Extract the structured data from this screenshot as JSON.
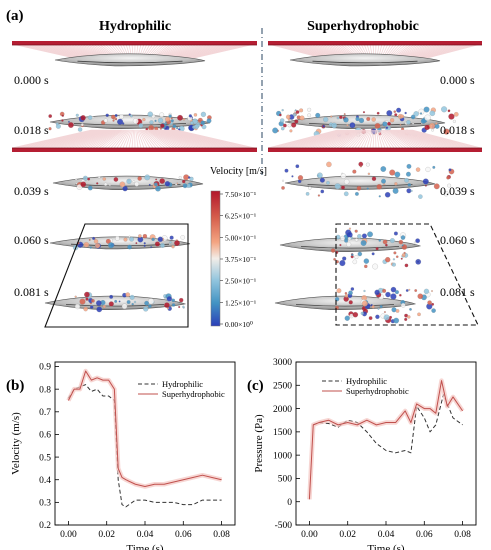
{
  "figure": {
    "panel_a_label": "(a)",
    "panel_b_label": "(b)",
    "panel_c_label": "(c)",
    "col_left_title": "Hydrophilic",
    "col_right_title": "Superhydrophobic",
    "time_labels": [
      "0.000 s",
      "0.018 s",
      "0.039 s",
      "0.060 s",
      "0.081 s"
    ],
    "colorbar": {
      "title": "Velocity [m/s]",
      "ticks": [
        "7.50×10⁻¹",
        "6.25×10⁻¹",
        "5.00×10⁻¹",
        "3.75×10⁻¹",
        "2.50×10⁻¹",
        "1.25×10⁻¹",
        "0.00×10⁰"
      ],
      "colors": [
        "#b2182b",
        "#d6604d",
        "#f4a582",
        "#f7f7f7",
        "#92c5de",
        "#4393c3",
        "#2c3fb8"
      ]
    },
    "colors": {
      "hydrophilic": "#333333",
      "superhydrophobic": "#c0504d",
      "shade": "#f4c4c0"
    }
  },
  "chart_data": [
    {
      "type": "line",
      "panel": "b",
      "xlabel": "Time (s)",
      "ylabel": "Velocity (m/s)",
      "xlim": [
        -0.007,
        0.087
      ],
      "ylim": [
        0.2,
        0.92
      ],
      "xticks": [
        0.0,
        0.02,
        0.04,
        0.06,
        0.08
      ],
      "yticks": [
        0.2,
        0.3,
        0.4,
        0.5,
        0.6,
        0.7,
        0.8,
        0.9
      ],
      "xtick_labels": [
        "0.00",
        "0.02",
        "0.04",
        "0.06",
        "0.08"
      ],
      "ytick_labels": [
        "0.2",
        "0.3",
        "0.4",
        "0.5",
        "0.6",
        "0.7",
        "0.8",
        "0.9"
      ],
      "legend_position": "top-right",
      "series": [
        {
          "name": "Hydrophilic",
          "style": "dashed",
          "x": [
            0.0,
            0.003,
            0.006,
            0.009,
            0.012,
            0.015,
            0.018,
            0.021,
            0.024,
            0.026,
            0.028,
            0.03,
            0.035,
            0.04,
            0.045,
            0.05,
            0.055,
            0.06,
            0.065,
            0.07,
            0.075,
            0.08
          ],
          "y": [
            0.76,
            0.8,
            0.81,
            0.82,
            0.79,
            0.8,
            0.77,
            0.77,
            0.75,
            0.4,
            0.29,
            0.28,
            0.31,
            0.31,
            0.3,
            0.3,
            0.3,
            0.29,
            0.29,
            0.31,
            0.31,
            0.31
          ]
        },
        {
          "name": "Superhydrophobic",
          "style": "solid",
          "x": [
            0.0,
            0.003,
            0.006,
            0.009,
            0.012,
            0.015,
            0.018,
            0.021,
            0.024,
            0.026,
            0.028,
            0.03,
            0.035,
            0.04,
            0.045,
            0.05,
            0.055,
            0.06,
            0.065,
            0.07,
            0.075,
            0.08
          ],
          "y": [
            0.75,
            0.8,
            0.8,
            0.88,
            0.84,
            0.85,
            0.84,
            0.84,
            0.8,
            0.45,
            0.41,
            0.4,
            0.38,
            0.37,
            0.38,
            0.38,
            0.39,
            0.4,
            0.41,
            0.42,
            0.41,
            0.4
          ]
        }
      ]
    },
    {
      "type": "line",
      "panel": "c",
      "xlabel": "Time (s)",
      "ylabel": "Pressure (Pa)",
      "xlim": [
        -0.007,
        0.087
      ],
      "ylim": [
        -500,
        3000
      ],
      "xticks": [
        0.0,
        0.02,
        0.04,
        0.06,
        0.08
      ],
      "yticks": [
        -500,
        0,
        500,
        1000,
        1500,
        2000,
        2500,
        3000
      ],
      "xtick_labels": [
        "0.00",
        "0.02",
        "0.04",
        "0.06",
        "0.08"
      ],
      "ytick_labels": [
        "-500",
        "0",
        "500",
        "1000",
        "1500",
        "2000",
        "2500",
        "3000"
      ],
      "legend_position": "top-left",
      "series": [
        {
          "name": "Hydrophilic",
          "style": "dashed",
          "x": [
            0.002,
            0.005,
            0.01,
            0.015,
            0.02,
            0.025,
            0.03,
            0.035,
            0.04,
            0.045,
            0.05,
            0.053,
            0.056,
            0.06,
            0.063,
            0.066,
            0.07,
            0.075,
            0.08
          ],
          "y": [
            1650,
            1700,
            1680,
            1600,
            1750,
            1700,
            1500,
            1250,
            1100,
            1050,
            1100,
            1050,
            2050,
            1800,
            1500,
            1650,
            2300,
            1800,
            1650
          ]
        },
        {
          "name": "Superhydrophobic",
          "style": "solid",
          "x": [
            0.0,
            0.002,
            0.005,
            0.01,
            0.015,
            0.02,
            0.025,
            0.03,
            0.035,
            0.04,
            0.045,
            0.05,
            0.053,
            0.056,
            0.06,
            0.063,
            0.066,
            0.069,
            0.072,
            0.075,
            0.08
          ],
          "y": [
            50,
            1650,
            1700,
            1750,
            1650,
            1700,
            1650,
            1750,
            1650,
            1700,
            1700,
            1950,
            1700,
            2100,
            2000,
            2000,
            1900,
            2600,
            2050,
            2250,
            1950
          ]
        }
      ]
    }
  ]
}
